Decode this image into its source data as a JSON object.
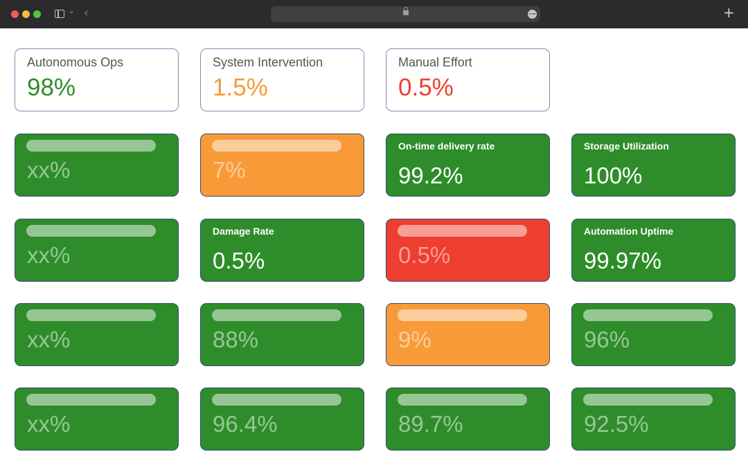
{
  "browser": {
    "toolbar": "macos-browser"
  },
  "summary": [
    {
      "label": "Autonomous Ops",
      "value": "98%",
      "color": "#2e8d2a"
    },
    {
      "label": "System Intervention",
      "value": "1.5%",
      "color": "#f39a37"
    },
    {
      "label": "Manual Effort",
      "value": "0.5%",
      "color": "#ee3e2f"
    }
  ],
  "metrics": {
    "r1c1": {
      "value": "xx%"
    },
    "r1c2": {
      "value": "7%"
    },
    "r1c3": {
      "label": "On-time delivery rate",
      "value": "99.2%"
    },
    "r1c4": {
      "label": "Storage Utilization",
      "value": "100%"
    },
    "r2c1": {
      "value": "xx%"
    },
    "r2c2": {
      "label": "Damage Rate",
      "value": "0.5%"
    },
    "r2c3": {
      "value": "0.5%"
    },
    "r2c4": {
      "label": "Automation Uptime",
      "value": "99.97%"
    },
    "r3c1": {
      "value": "xx%"
    },
    "r3c2": {
      "value": "88%"
    },
    "r3c3": {
      "value": "9%"
    },
    "r3c4": {
      "value": "96%"
    },
    "r4c1": {
      "value": "xx%"
    },
    "r4c2": {
      "value": "96.4%"
    },
    "r4c3": {
      "value": "89.7%"
    },
    "r4c4": {
      "value": "92.5%"
    }
  },
  "icons": [
    "sidebar-icon",
    "chevron-down-icon",
    "back-arrow-icon",
    "lock-icon",
    "more-icon",
    "plus-icon"
  ]
}
